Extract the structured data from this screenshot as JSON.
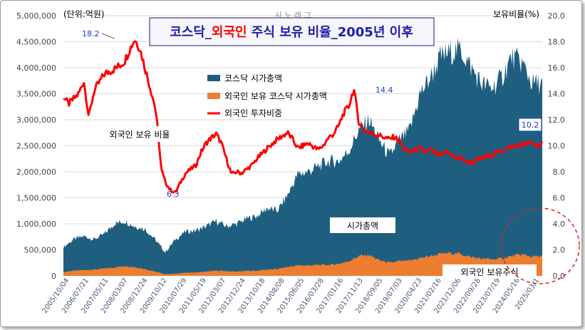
{
  "chart_data": {
    "type": "area",
    "title_parts": [
      "코스닥_",
      "외국인",
      " 주식 보유 비율_2005년 이후"
    ],
    "unit_left": "(단위:억원)",
    "unit_right": "보유비율(%)",
    "left_axis": {
      "min": 0,
      "max": 5000000,
      "ticks": [
        "0",
        "500,000",
        "1,000,000",
        "1,500,000",
        "2,000,000",
        "2,500,000",
        "3,000,000",
        "3,500,000",
        "4,000,000",
        "4,500,000",
        "5,000,000"
      ]
    },
    "right_axis": {
      "min": 0,
      "max": 20,
      "ticks": [
        "0.0",
        "2.0",
        "4.0",
        "6.0",
        "8.0",
        "10.0",
        "12.0",
        "14.0",
        "16.0",
        "18.0",
        "20.0"
      ]
    },
    "x_labels": [
      "2005/10/04",
      "2006/07/21",
      "2007/05/11",
      "2008/03/07",
      "2008/12/24",
      "2009/10/12",
      "2010/07/29",
      "2011/05/19",
      "2012/03/07",
      "2012/12/24",
      "2013/10/18",
      "2014/08/08",
      "2015/06/05",
      "2016/03/28",
      "2017/01/16",
      "2017/11/13",
      "2018/09/05",
      "2019/07/03",
      "2020/04/23",
      "2021/02/16",
      "2021/12/06",
      "2022/09/28",
      "2023/07/19",
      "2024/05/16",
      "2025/03/1"
    ],
    "legend": [
      "코스닥 시가총액",
      "외국인 보유 코스닥 시가총액",
      "외국인 투자비중"
    ],
    "colors": {
      "market_cap": "#1e5f80",
      "foreign_cap": "#ec7d31",
      "ratio": "#ff0000",
      "title_blue": "#1f1fa8",
      "title_red": "#ff0000",
      "annot": "#1a3fbf"
    },
    "series": [
      {
        "name": "코스닥 시가총액",
        "axis": "left",
        "points": [
          [
            0,
            550000
          ],
          [
            1,
            700000
          ],
          [
            2,
            760000
          ],
          [
            3,
            700000
          ],
          [
            4,
            800000
          ],
          [
            5,
            1000000
          ],
          [
            6,
            1050000
          ],
          [
            7,
            950000
          ],
          [
            8,
            900000
          ],
          [
            9,
            700000
          ],
          [
            10,
            450000
          ],
          [
            11,
            700000
          ],
          [
            12,
            850000
          ],
          [
            13,
            870000
          ],
          [
            14,
            950000
          ],
          [
            15,
            1050000
          ],
          [
            16,
            950000
          ],
          [
            17,
            1000000
          ],
          [
            18,
            1100000
          ],
          [
            19,
            1150000
          ],
          [
            20,
            1300000
          ],
          [
            21,
            1250000
          ],
          [
            22,
            1550000
          ],
          [
            23,
            1950000
          ],
          [
            24,
            2000000
          ],
          [
            25,
            2100000
          ],
          [
            26,
            2200000
          ],
          [
            27,
            2200000
          ],
          [
            28,
            2400000
          ],
          [
            29,
            2800000
          ],
          [
            30,
            3000000
          ],
          [
            31,
            2600000
          ],
          [
            32,
            2300000
          ],
          [
            33,
            2600000
          ],
          [
            34,
            2800000
          ],
          [
            35,
            3500000
          ],
          [
            36,
            3800000
          ],
          [
            37,
            4200000
          ],
          [
            38,
            4300000
          ],
          [
            39,
            4350000
          ],
          [
            40,
            4000000
          ],
          [
            41,
            3700000
          ],
          [
            42,
            3600000
          ],
          [
            43,
            3800000
          ],
          [
            44,
            4200000
          ],
          [
            45,
            4100000
          ],
          [
            46,
            3700000
          ],
          [
            47,
            3700000
          ]
        ]
      },
      {
        "name": "외국인 보유 코스닥 시가총액",
        "axis": "left",
        "points": [
          [
            0,
            70000
          ],
          [
            1,
            100000
          ],
          [
            2,
            110000
          ],
          [
            3,
            120000
          ],
          [
            4,
            140000
          ],
          [
            5,
            160000
          ],
          [
            6,
            190000
          ],
          [
            7,
            170000
          ],
          [
            8,
            130000
          ],
          [
            9,
            80000
          ],
          [
            10,
            30000
          ],
          [
            11,
            40000
          ],
          [
            12,
            60000
          ],
          [
            13,
            65000
          ],
          [
            14,
            80000
          ],
          [
            15,
            100000
          ],
          [
            16,
            90000
          ],
          [
            17,
            80000
          ],
          [
            18,
            95000
          ],
          [
            19,
            100000
          ],
          [
            20,
            120000
          ],
          [
            21,
            130000
          ],
          [
            22,
            170000
          ],
          [
            23,
            200000
          ],
          [
            24,
            200000
          ],
          [
            25,
            210000
          ],
          [
            26,
            210000
          ],
          [
            27,
            230000
          ],
          [
            28,
            280000
          ],
          [
            29,
            380000
          ],
          [
            30,
            400000
          ],
          [
            31,
            300000
          ],
          [
            32,
            250000
          ],
          [
            33,
            280000
          ],
          [
            34,
            290000
          ],
          [
            35,
            340000
          ],
          [
            36,
            380000
          ],
          [
            37,
            420000
          ],
          [
            38,
            440000
          ],
          [
            39,
            420000
          ],
          [
            40,
            360000
          ],
          [
            41,
            330000
          ],
          [
            42,
            320000
          ],
          [
            43,
            330000
          ],
          [
            44,
            380000
          ],
          [
            45,
            410000
          ],
          [
            46,
            370000
          ],
          [
            47,
            380000
          ]
        ]
      },
      {
        "name": "외국인 투자비중",
        "axis": "right",
        "points": [
          [
            0,
            13.8
          ],
          [
            0.5,
            13.2
          ],
          [
            1,
            13.6
          ],
          [
            1.5,
            14.0
          ],
          [
            2,
            15.0
          ],
          [
            2.5,
            12.2
          ],
          [
            3,
            14.2
          ],
          [
            4,
            15.5
          ],
          [
            5,
            15.9
          ],
          [
            5.6,
            16.2
          ],
          [
            6,
            16.5
          ],
          [
            6.5,
            17.4
          ],
          [
            7,
            18.2
          ],
          [
            7.5,
            17.5
          ],
          [
            8,
            16.0
          ],
          [
            8.5,
            14.5
          ],
          [
            9,
            13.0
          ],
          [
            9.3,
            11.0
          ],
          [
            9.6,
            8.2
          ],
          [
            10,
            7.2
          ],
          [
            10.5,
            6.6
          ],
          [
            11,
            6.4
          ],
          [
            11.5,
            7.2
          ],
          [
            12,
            7.9
          ],
          [
            12.5,
            8.2
          ],
          [
            13,
            8.5
          ],
          [
            13.5,
            9.5
          ],
          [
            14,
            10.2
          ],
          [
            14.5,
            10.6
          ],
          [
            15,
            10.9
          ],
          [
            15.5,
            10.2
          ],
          [
            16,
            9.0
          ],
          [
            16.5,
            7.8
          ],
          [
            17,
            8.0
          ],
          [
            17.5,
            7.9
          ],
          [
            18,
            8.2
          ],
          [
            18.5,
            8.5
          ],
          [
            19,
            9.0
          ],
          [
            20,
            9.8
          ],
          [
            21,
            10.5
          ],
          [
            22,
            11.0
          ],
          [
            22.5,
            10.5
          ],
          [
            23,
            9.8
          ],
          [
            24,
            10.2
          ],
          [
            25,
            9.7
          ],
          [
            25.5,
            10.0
          ],
          [
            26,
            10.6
          ],
          [
            26.5,
            10.9
          ],
          [
            27,
            11.5
          ],
          [
            27.5,
            12.5
          ],
          [
            28,
            13.0
          ],
          [
            28.5,
            14.4
          ],
          [
            29,
            11.8
          ],
          [
            29.5,
            11.2
          ],
          [
            30,
            11.0
          ],
          [
            31,
            10.8
          ],
          [
            32,
            10.5
          ],
          [
            32.5,
            10.7
          ],
          [
            33,
            10.3
          ],
          [
            33.5,
            9.7
          ],
          [
            34,
            9.5
          ],
          [
            35,
            9.8
          ],
          [
            35.5,
            9.5
          ],
          [
            36,
            9.7
          ],
          [
            37,
            9.2
          ],
          [
            37.5,
            9.5
          ],
          [
            38,
            9.4
          ],
          [
            38.5,
            9.0
          ],
          [
            39,
            9.1
          ],
          [
            39.5,
            8.8
          ],
          [
            40,
            8.7
          ],
          [
            41,
            9.0
          ],
          [
            42,
            9.3
          ],
          [
            43,
            9.6
          ],
          [
            43.5,
            9.8
          ],
          [
            44,
            9.9
          ],
          [
            45,
            10.1
          ],
          [
            46,
            10.2
          ],
          [
            46.5,
            10.0
          ],
          [
            47,
            10.2
          ]
        ]
      }
    ],
    "annotations": {
      "peak_value": "18.2",
      "low_value": "6.3",
      "mid_value": "14.4",
      "last_value": "10.2",
      "ratio_label": "외국인 보유 비율",
      "cap_label": "시가총액",
      "foreign_label": "외국인 보유주식",
      "faint_subtitle": "시 노 레 그"
    },
    "grid": true,
    "legend_position": "center"
  }
}
